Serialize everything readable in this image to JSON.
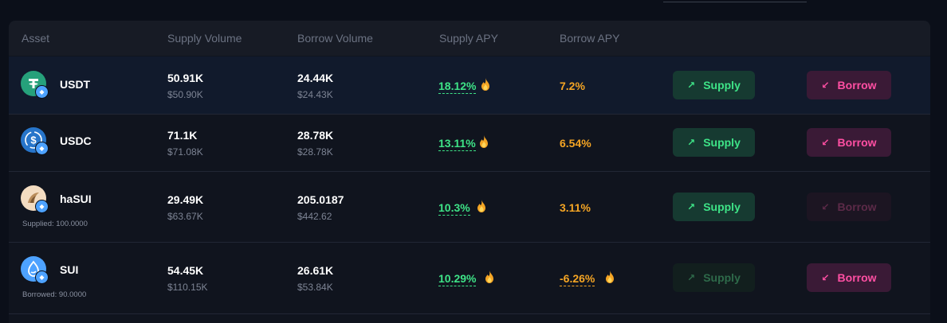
{
  "header": {
    "asset": "Asset",
    "supply_volume": "Supply Volume",
    "borrow_volume": "Borrow Volume",
    "supply_apy": "Supply APY",
    "borrow_apy": "Borrow APY"
  },
  "colors": {
    "green": "#3ee387",
    "orange": "#f5a524",
    "pink": "#ff4fa3",
    "sui_blue": "#4da2ff"
  },
  "rows": [
    {
      "name": "USDT",
      "icon": "usdt-icon",
      "note": "",
      "supply_volume": "50.91K",
      "supply_volume_usd": "$50.90K",
      "borrow_volume": "24.44K",
      "borrow_volume_usd": "$24.43K",
      "supply_apy": "18.12%",
      "borrow_apy": "7.2%",
      "supply_label": "Supply",
      "borrow_label": "Borrow"
    },
    {
      "name": "USDC",
      "icon": "usdc-icon",
      "note": "",
      "supply_volume": "71.1K",
      "supply_volume_usd": "$71.08K",
      "borrow_volume": "28.78K",
      "borrow_volume_usd": "$28.78K",
      "supply_apy": "13.11%",
      "borrow_apy": "6.54%",
      "supply_label": "Supply",
      "borrow_label": "Borrow"
    },
    {
      "name": "haSUI",
      "icon": "hasui-icon",
      "note": "Supplied: 100.0000",
      "supply_volume": "29.49K",
      "supply_volume_usd": "$63.67K",
      "borrow_volume": "205.0187",
      "borrow_volume_usd": "$442.62",
      "supply_apy": "10.3%",
      "borrow_apy": "3.11%",
      "supply_label": "Supply",
      "borrow_label": "Borrow"
    },
    {
      "name": "SUI",
      "icon": "sui-icon",
      "note": "Borrowed: 90.0000",
      "supply_volume": "54.45K",
      "supply_volume_usd": "$110.15K",
      "borrow_volume": "26.61K",
      "borrow_volume_usd": "$53.84K",
      "supply_apy": "10.29%",
      "borrow_apy": "-6.26%",
      "supply_label": "Supply",
      "borrow_label": "Borrow"
    }
  ]
}
